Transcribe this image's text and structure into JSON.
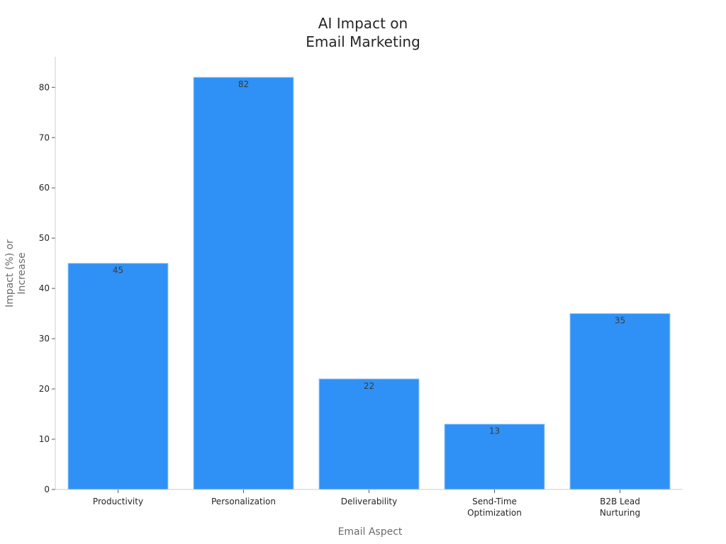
{
  "chart_data": {
    "type": "bar",
    "title_lines": [
      "AI Impact on",
      "Email Marketing"
    ],
    "xlabel": "Email Aspect",
    "ylabel_lines": [
      "Impact (%) or",
      "Increase"
    ],
    "categories": [
      [
        "Productivity"
      ],
      [
        "Personalization"
      ],
      [
        "Deliverability"
      ],
      [
        "Send-Time",
        "Optimization"
      ],
      [
        "B2B Lead",
        "Nurturing"
      ]
    ],
    "values": [
      45,
      82,
      22,
      13,
      35
    ],
    "data_labels": [
      "45",
      "82",
      "22",
      "13",
      "35"
    ],
    "y_ticks": [
      0,
      10,
      20,
      30,
      40,
      50,
      60,
      70,
      80
    ],
    "ylim": [
      0,
      86.1
    ],
    "grid": false,
    "bar_color": "#2f91f5",
    "bar_edge_color": "#a9cdf9",
    "axis_color": "#cccccc"
  }
}
